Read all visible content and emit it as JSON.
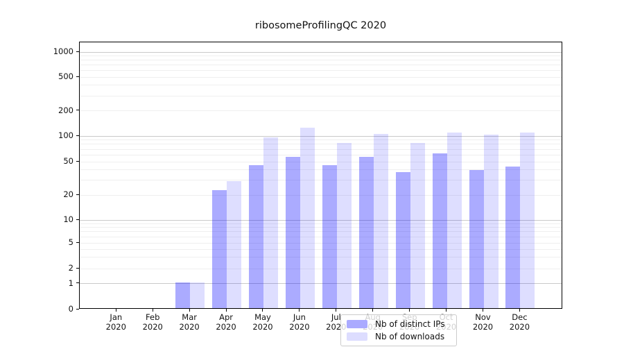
{
  "title": "ribosomeProfilingQC 2020",
  "chart_data": {
    "type": "bar",
    "title": "ribosomeProfilingQC 2020",
    "categories": [
      "Jan",
      "Feb",
      "Mar",
      "Apr",
      "May",
      "Jun",
      "Jul",
      "Aug",
      "Sep",
      "Oct",
      "Nov",
      "Dec"
    ],
    "category_sublabel": "2020",
    "series": [
      {
        "name": "Nb of distinct IPs",
        "fill": "rgba(0,0,255,0.33)",
        "solid": "#aaaaff",
        "values": [
          0,
          0,
          1,
          22,
          44,
          55,
          44,
          55,
          36,
          60,
          38,
          42
        ]
      },
      {
        "name": "Nb of downloads",
        "fill": "rgba(0,0,255,0.13)",
        "solid": "#ddddff",
        "values": [
          0,
          0,
          1,
          28,
          93,
          122,
          80,
          101,
          80,
          105,
          100,
          106
        ]
      }
    ],
    "yscale": "symlog",
    "ylim": [
      0,
      1000
    ],
    "yticks": [
      0,
      1,
      2,
      5,
      10,
      20,
      50,
      100,
      200,
      500,
      1000
    ],
    "grid": true,
    "grid_minor_values": [
      2,
      3,
      4,
      5,
      6,
      7,
      8,
      9,
      20,
      30,
      40,
      50,
      60,
      70,
      80,
      90,
      200,
      300,
      400,
      500,
      600,
      700,
      800,
      900
    ],
    "grid_major_values": [
      1,
      10,
      100,
      1000
    ],
    "legend_position": "lower center",
    "xlabel": "",
    "ylabel": ""
  }
}
